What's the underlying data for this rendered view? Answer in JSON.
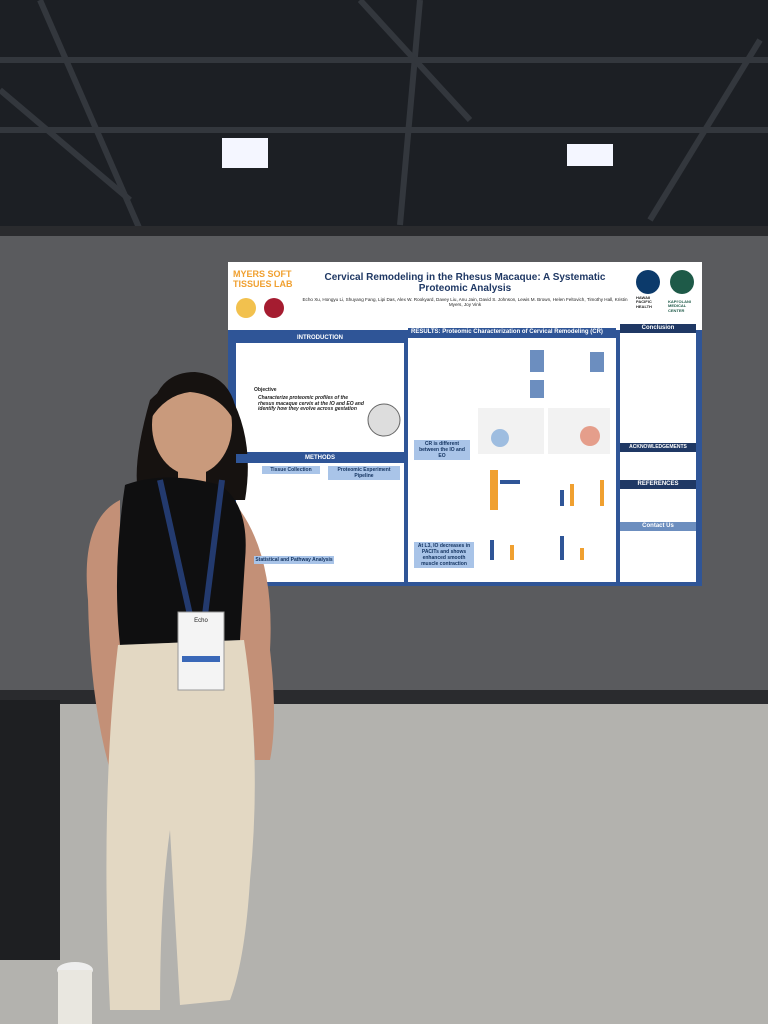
{
  "poster": {
    "lab_logo": "MYERS SOFT TISSUES LAB",
    "title": "Cervical Remodeling in the Rhesus Macaque: A Systematic Proteomic Analysis",
    "authors": "Echo Xu, Hongyu Li, Shuyang Fang, Lipi Das, Alex W. Rookyard, Davey Liu, Anu Jain, David S. Johnson, Lewis M. Brown, Helen Feltovich, Timothy Hall, Kristin Myers, Joy Vink",
    "sponsor": "HAWAII PACIFIC HEALTH",
    "sponsor_2": "KAPI'OLANI MEDICAL CENTER",
    "introduction": "INTRODUCTION",
    "objective": "Objective",
    "objective_text": "Characterize proteomic profiles of the rhesus macaque cervix at the IO and EO and identify how they evolve across gestation",
    "methods": "METHODS",
    "tissue_collection": "Tissue Collection",
    "pipeline": "Proteomic Experiment Pipeline",
    "statistics": "Statistical and Pathway Analysis",
    "results": "RESULTS: Proteomic Characterization of Cervical Remodeling (CR)",
    "finding_1": "CR is different between the IO and EO",
    "finding_2": "At L3, IO decreases in PACITs and shows enhanced smooth muscle contraction",
    "conclusion": "Conclusion",
    "acknowledgements": "ACKNOWLEDGEMENTS",
    "references": "REFERENCES",
    "contact": "Contact Us"
  },
  "badge": {
    "name": "Echo"
  }
}
